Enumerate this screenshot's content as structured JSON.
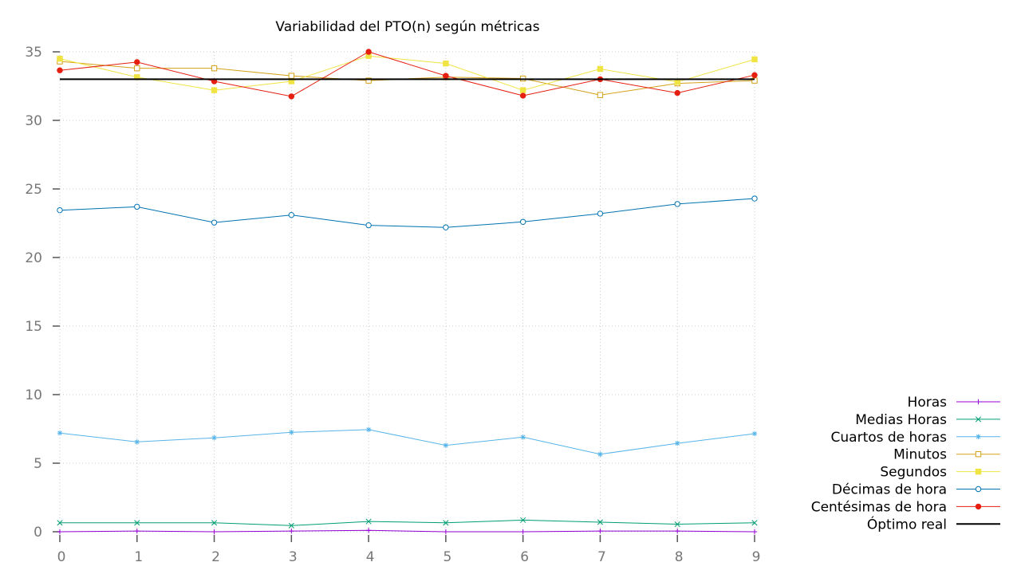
{
  "chart_data": {
    "type": "line",
    "title": "Variabilidad del PTO(n) según métricas",
    "xlabel": "",
    "ylabel": "",
    "x": [
      0,
      1,
      2,
      3,
      4,
      5,
      6,
      7,
      8,
      9
    ],
    "x_ticks": [
      "0",
      "1",
      "2",
      "3",
      "4",
      "5",
      "6",
      "7",
      "8",
      "9"
    ],
    "y_ticks": [
      "0",
      "5",
      "10",
      "15",
      "20",
      "25",
      "30",
      "35"
    ],
    "xlim": [
      0,
      9
    ],
    "ylim": [
      0,
      35
    ],
    "grid": true,
    "legend_position": "bottom-right",
    "series": [
      {
        "name": "Horas",
        "color": "#9400d3",
        "marker": "plus",
        "values": [
          0.0,
          0.05,
          0.0,
          0.05,
          0.1,
          0.0,
          0.0,
          0.05,
          0.05,
          0.0
        ]
      },
      {
        "name": "Medias Horas",
        "color": "#009e73",
        "marker": "cross",
        "values": [
          0.65,
          0.65,
          0.65,
          0.45,
          0.75,
          0.65,
          0.85,
          0.7,
          0.55,
          0.65
        ]
      },
      {
        "name": "Cuartos de horas",
        "color": "#56b4e9",
        "marker": "asterisk",
        "values": [
          7.2,
          6.55,
          6.85,
          7.25,
          7.45,
          6.3,
          6.9,
          5.65,
          6.45,
          7.15
        ]
      },
      {
        "name": "Minutos",
        "color": "#d4a017",
        "marker": "open-square",
        "values": [
          34.3,
          33.8,
          33.8,
          33.25,
          32.9,
          33.15,
          33.05,
          31.85,
          32.7,
          32.9
        ]
      },
      {
        "name": "Segundos",
        "color": "#f0e442",
        "marker": "filled-square",
        "values": [
          34.5,
          33.15,
          32.2,
          32.85,
          34.7,
          34.15,
          32.2,
          33.75,
          32.8,
          34.45
        ]
      },
      {
        "name": "Décimas de hora",
        "color": "#0072b2",
        "marker": "open-circle",
        "values": [
          23.45,
          23.7,
          22.55,
          23.1,
          22.35,
          22.2,
          22.6,
          23.2,
          23.9,
          24.3
        ]
      },
      {
        "name": "Centésimas de hora",
        "color": "#e51e10",
        "marker": "filled-circle",
        "values": [
          33.65,
          34.25,
          32.85,
          31.75,
          35.0,
          33.25,
          31.8,
          33.0,
          32.0,
          33.3
        ]
      },
      {
        "name": "Óptimo real",
        "color": "#000000",
        "marker": "none",
        "values": [
          33.0,
          33.0,
          33.0,
          33.0,
          33.0,
          33.0,
          33.0,
          33.0,
          33.0,
          33.0
        ]
      }
    ]
  }
}
